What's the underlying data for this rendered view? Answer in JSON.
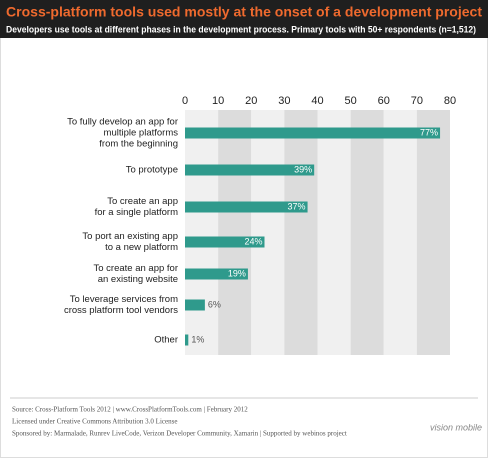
{
  "header": {
    "title": "Cross-platform tools used mostly at the onset of a development project",
    "subtitle": "Developers use tools at different phases in the development process. Primary tools with 50+ respondents (n=1,512)"
  },
  "chart_data": {
    "type": "hbar",
    "categories": [
      "To fully develop an app for\nmultiple platforms\nfrom the beginning",
      "To prototype",
      "To create an app\nfor a single platform",
      "To port an existing app\nto a new platform",
      "To create an app for\nan existing website",
      "To leverage services from\ncross platform tool vendors",
      "Other"
    ],
    "values": [
      77,
      39,
      37,
      24,
      19,
      6,
      1
    ],
    "value_labels": [
      "77%",
      "39%",
      "37%",
      "24%",
      "19%",
      "6%",
      "1%"
    ],
    "color": "#2f9a8c",
    "xlim": [
      0,
      80
    ],
    "xticks": [
      0,
      10,
      20,
      30,
      40,
      50,
      60,
      70,
      80
    ],
    "grid": "bands"
  },
  "footer": {
    "lines": [
      "Source: Cross-Platform Tools 2012 | www.CrossPlatformTools.com | February 2012",
      "Licensed under Creative Commons Attribution 3.0 License",
      "Sponsored by: Marmalade, Runrev LiveCode, Verizon Developer Community, Xamarin | Supported by webinos project"
    ],
    "logo": "vision mobile"
  }
}
